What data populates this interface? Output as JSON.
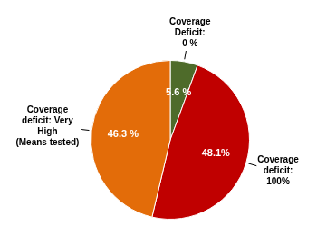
{
  "chart_data": {
    "type": "pie",
    "categories": [
      "Coverage\nDeficit:\n0 %",
      "Coverage\ndeficit:\n100%",
      "Coverage\ndeficit: Very\nHigh\n(Means tested)"
    ],
    "values": [
      5.6,
      48.1,
      46.3
    ],
    "value_labels": [
      "5.6 %",
      "48.1%",
      "46.3 %"
    ],
    "data_labels": true,
    "colors": [
      "#4e6b2a",
      "#c00000",
      "#e36c09"
    ]
  }
}
